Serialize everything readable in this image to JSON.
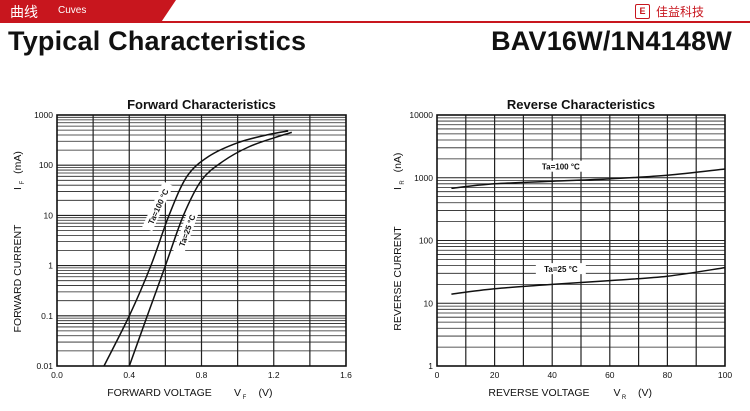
{
  "header": {
    "tab_title": "曲线",
    "tab_subtitle": "Cuves",
    "brand_logo": "E",
    "brand_name": "佳益科技",
    "brand_color": "#c8161e"
  },
  "titles": {
    "left": "Typical Characteristics",
    "right": "BAV16W/1N4148W"
  },
  "chart_data": [
    {
      "type": "line",
      "title": "Forward Characteristics",
      "xlabel": "FORWARD VOLTAGE",
      "xlabel_sym": "V",
      "xlabel_sub": "F",
      "xlabel_unit": "(V)",
      "ylabel": "FORWARD CURRENT",
      "ylabel_sym": "I",
      "ylabel_sub": "F",
      "ylabel_unit": "(mA)",
      "xlim": [
        0.0,
        1.6
      ],
      "ylim": [
        0.01,
        1000
      ],
      "yscale": "log",
      "grid": true,
      "xticks": [
        {
          "v": 0.0,
          "label": "0.0"
        },
        {
          "v": 0.4,
          "label": "0.4"
        },
        {
          "v": 0.8,
          "label": "0.8"
        },
        {
          "v": 1.2,
          "label": "1.2"
        },
        {
          "v": 1.6,
          "label": "1.6"
        }
      ],
      "yticks": [
        {
          "v": 0.01,
          "label": "0.01"
        },
        {
          "v": 0.1,
          "label": "0.1"
        },
        {
          "v": 1,
          "label": "1"
        },
        {
          "v": 10,
          "label": "10"
        },
        {
          "v": 100,
          "label": "100"
        },
        {
          "v": 1000,
          "label": "1000"
        }
      ],
      "series": [
        {
          "name": "Ta=100 °C",
          "x": [
            0.26,
            0.4,
            0.52,
            0.62,
            0.72,
            0.84,
            1.0,
            1.16,
            1.28
          ],
          "y": [
            0.01,
            0.1,
            1,
            10,
            60,
            150,
            280,
            400,
            480
          ],
          "label_at": {
            "x": 0.56,
            "y": 15
          }
        },
        {
          "name": "Ta=25 °C",
          "x": [
            0.4,
            0.5,
            0.6,
            0.7,
            0.8,
            0.92,
            1.06,
            1.2,
            1.3
          ],
          "y": [
            0.01,
            0.1,
            1,
            10,
            50,
            120,
            230,
            350,
            450
          ],
          "label_at": {
            "x": 0.72,
            "y": 5
          }
        }
      ]
    },
    {
      "type": "line",
      "title": "Reverse Characteristics",
      "xlabel": "REVERSE VOLTAGE",
      "xlabel_sym": "V",
      "xlabel_sub": "R",
      "xlabel_unit": "(V)",
      "ylabel": "REVERSE CURRENT",
      "ylabel_sym": "I",
      "ylabel_sub": "R",
      "ylabel_unit": "(nA)",
      "xlim": [
        0,
        100
      ],
      "ylim": [
        1,
        10000
      ],
      "yscale": "log",
      "grid": true,
      "xticks": [
        {
          "v": 0,
          "label": "0"
        },
        {
          "v": 20,
          "label": "20"
        },
        {
          "v": 40,
          "label": "40"
        },
        {
          "v": 60,
          "label": "60"
        },
        {
          "v": 80,
          "label": "80"
        },
        {
          "v": 100,
          "label": "100"
        }
      ],
      "yticks": [
        {
          "v": 1,
          "label": "1"
        },
        {
          "v": 10,
          "label": "10"
        },
        {
          "v": 100,
          "label": "100"
        },
        {
          "v": 1000,
          "label": "1000"
        },
        {
          "v": 10000,
          "label": "10000"
        }
      ],
      "series": [
        {
          "name": "Ta=100 °C",
          "x": [
            5,
            20,
            40,
            60,
            80,
            100
          ],
          "y": [
            680,
            800,
            880,
            960,
            1100,
            1380
          ],
          "label_at": {
            "x": 43,
            "y": 1500
          }
        },
        {
          "name": "Ta=25 °C",
          "x": [
            5,
            20,
            40,
            60,
            80,
            100
          ],
          "y": [
            14,
            17,
            20,
            23,
            27,
            37
          ],
          "label_at": {
            "x": 43,
            "y": 35
          }
        }
      ]
    }
  ]
}
